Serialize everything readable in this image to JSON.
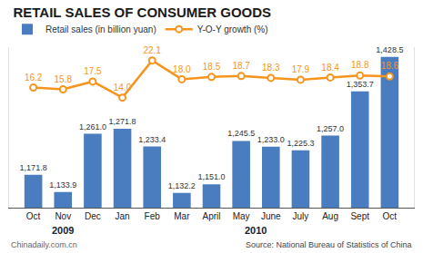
{
  "chart_data": {
    "type": "bar",
    "title": "RETAIL SALES OF CONSUMER GOODS",
    "categories": [
      "Oct",
      "Nov",
      "Dec",
      "Jan",
      "Feb",
      "Mar",
      "April",
      "May",
      "June",
      "July",
      "Aug",
      "Sept",
      "Oct"
    ],
    "x_groups": [
      {
        "label": "2009",
        "count": 3
      },
      {
        "label": "2010",
        "count": 10
      }
    ],
    "series": [
      {
        "name": "Retail sales (in billion yuan)",
        "type": "bar",
        "color": "#4a7dbf",
        "values": [
          1171.8,
          1133.9,
          1261.0,
          1271.8,
          1233.4,
          1132.2,
          1151.0,
          1245.5,
          1233.0,
          1225.3,
          1257.0,
          1353.7,
          1428.5
        ],
        "value_labels": [
          "1,171.8",
          "1,133.9",
          "1,261.0",
          "1,271.8",
          "1,233.4",
          "1,132.2",
          "1,151.0",
          "1,245.5",
          "1,233.0",
          "1,225.3",
          "1,257.0",
          "1,353.7",
          "1,428.5"
        ]
      },
      {
        "name": "Y-O-Y growth (%)",
        "type": "line",
        "axis": "y2",
        "color": "#f7941d",
        "marker": "circle",
        "values": [
          16.2,
          15.8,
          17.5,
          14.0,
          22.1,
          18.0,
          18.5,
          18.7,
          18.3,
          17.9,
          18.4,
          18.8,
          18.6
        ],
        "value_labels": [
          "16.2",
          "15.8",
          "17.5",
          "14.0",
          "22.1",
          "18.0",
          "18.5",
          "18.7",
          "18.3",
          "17.9",
          "18.4",
          "18.8",
          "18.6"
        ]
      }
    ],
    "ylim": [
      1100,
      1450
    ],
    "y2lim": [
      -10,
      25
    ],
    "tick_labels": "x",
    "data_labels": true,
    "legend": "top left",
    "grid": false,
    "credit": "Chinadaily.com.cn",
    "source": "Source: National Bureau of Statistics of China"
  }
}
